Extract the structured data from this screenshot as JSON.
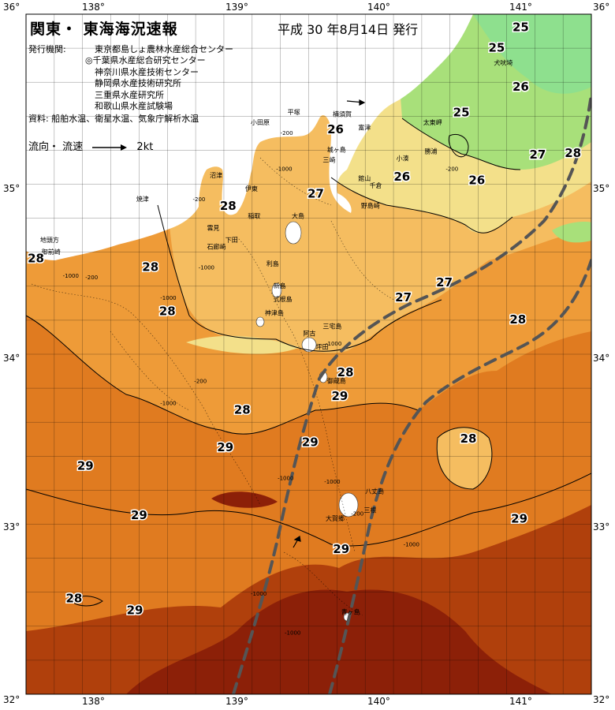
{
  "header": {
    "title": "関東・ 東海海況速報",
    "date": "平成 30 年8月14日 発行"
  },
  "issuers": {
    "label": "発行機関:",
    "list": [
      "東京都島しょ農林水産総合センター",
      "◎千葉県水産総合研究センター",
      "神奈川県水産技術センター",
      "静岡県水産技術研究所",
      "三重県水産研究所",
      "和歌山県水産試験場"
    ],
    "sources": "資料: 船舶水温、衛星水温、気象庁解析水温"
  },
  "legend": {
    "label": "流向・ 流速",
    "speed": "2kt"
  },
  "axes": {
    "lon_ticks": [
      "138°",
      "139°",
      "140°",
      "141°"
    ],
    "lat_ticks": [
      "35°",
      "34°",
      "33°"
    ],
    "corners": {
      "top_left": "36°",
      "top_right": "36°",
      "bottom_left": "32°",
      "bottom_right": "32°"
    }
  },
  "temperature_labels": [
    {
      "text": "25",
      "lon": 141.0,
      "lat": 35.9
    },
    {
      "text": "25",
      "lon": 140.83,
      "lat": 35.78
    },
    {
      "text": "26",
      "lon": 141.0,
      "lat": 35.55
    },
    {
      "text": "25",
      "lon": 140.58,
      "lat": 35.4
    },
    {
      "text": "26",
      "lon": 139.69,
      "lat": 35.3
    },
    {
      "text": "27",
      "lon": 141.12,
      "lat": 35.15
    },
    {
      "text": "28",
      "lon": 141.37,
      "lat": 35.16
    },
    {
      "text": "26",
      "lon": 140.16,
      "lat": 35.02
    },
    {
      "text": "26",
      "lon": 140.69,
      "lat": 35.0
    },
    {
      "text": "27",
      "lon": 139.55,
      "lat": 34.92
    },
    {
      "text": "28",
      "lon": 138.93,
      "lat": 34.85
    },
    {
      "text": "28",
      "lon": 137.57,
      "lat": 34.54
    },
    {
      "text": "28",
      "lon": 138.38,
      "lat": 34.49
    },
    {
      "text": "27",
      "lon": 140.46,
      "lat": 34.4
    },
    {
      "text": "27",
      "lon": 140.17,
      "lat": 34.31
    },
    {
      "text": "28",
      "lon": 138.5,
      "lat": 34.23
    },
    {
      "text": "28",
      "lon": 140.98,
      "lat": 34.18
    },
    {
      "text": "28",
      "lon": 139.76,
      "lat": 33.87
    },
    {
      "text": "29",
      "lon": 139.72,
      "lat": 33.73
    },
    {
      "text": "28",
      "lon": 139.03,
      "lat": 33.65
    },
    {
      "text": "28",
      "lon": 140.63,
      "lat": 33.48
    },
    {
      "text": "29",
      "lon": 139.51,
      "lat": 33.46
    },
    {
      "text": "29",
      "lon": 138.91,
      "lat": 33.43
    },
    {
      "text": "29",
      "lon": 137.92,
      "lat": 33.32
    },
    {
      "text": "29",
      "lon": 138.3,
      "lat": 33.03
    },
    {
      "text": "29",
      "lon": 140.99,
      "lat": 33.01
    },
    {
      "text": "29",
      "lon": 139.73,
      "lat": 32.83
    },
    {
      "text": "28",
      "lon": 137.84,
      "lat": 32.54
    },
    {
      "text": "29",
      "lon": 138.27,
      "lat": 32.47
    }
  ],
  "places": [
    {
      "text": "犬吠埼",
      "lon": 140.81,
      "lat": 35.7
    },
    {
      "text": "太東岬",
      "lon": 140.31,
      "lat": 35.35
    },
    {
      "text": "勝浦",
      "lon": 140.32,
      "lat": 35.18
    },
    {
      "text": "小湊",
      "lon": 140.12,
      "lat": 35.14
    },
    {
      "text": "富津",
      "lon": 139.85,
      "lat": 35.32
    },
    {
      "text": "横須賀",
      "lon": 139.67,
      "lat": 35.4
    },
    {
      "text": "平塚",
      "lon": 139.35,
      "lat": 35.41
    },
    {
      "text": "小田原",
      "lon": 139.09,
      "lat": 35.35
    },
    {
      "text": "館山",
      "lon": 139.85,
      "lat": 35.02
    },
    {
      "text": "千倉",
      "lon": 139.93,
      "lat": 34.98
    },
    {
      "text": "野島崎",
      "lon": 139.87,
      "lat": 34.86
    },
    {
      "text": "三崎",
      "lon": 139.6,
      "lat": 35.13
    },
    {
      "text": "城ヶ島",
      "lon": 139.63,
      "lat": 35.19
    },
    {
      "text": "沼津",
      "lon": 138.8,
      "lat": 35.04
    },
    {
      "text": "焼津",
      "lon": 138.28,
      "lat": 34.9
    },
    {
      "text": "伊東",
      "lon": 139.05,
      "lat": 34.96
    },
    {
      "text": "大島",
      "lon": 139.38,
      "lat": 34.8
    },
    {
      "text": "稲取",
      "lon": 139.07,
      "lat": 34.8
    },
    {
      "text": "下田",
      "lon": 138.91,
      "lat": 34.66
    },
    {
      "text": "雲見",
      "lon": 138.78,
      "lat": 34.73
    },
    {
      "text": "石廊崎",
      "lon": 138.78,
      "lat": 34.62
    },
    {
      "text": "地頭方",
      "lon": 137.6,
      "lat": 34.66
    },
    {
      "text": "御前崎",
      "lon": 137.61,
      "lat": 34.59
    },
    {
      "text": "利島",
      "lon": 139.2,
      "lat": 34.52
    },
    {
      "text": "新島",
      "lon": 139.25,
      "lat": 34.39
    },
    {
      "text": "式根島",
      "lon": 139.25,
      "lat": 34.31
    },
    {
      "text": "神津島",
      "lon": 139.19,
      "lat": 34.23
    },
    {
      "text": "三宅島",
      "lon": 139.6,
      "lat": 34.15
    },
    {
      "text": "阿古",
      "lon": 139.46,
      "lat": 34.11
    },
    {
      "text": "坪田",
      "lon": 139.55,
      "lat": 34.03
    },
    {
      "text": "御蔵島",
      "lon": 139.63,
      "lat": 33.83
    },
    {
      "text": "八丈島",
      "lon": 139.9,
      "lat": 33.18
    },
    {
      "text": "三根",
      "lon": 139.89,
      "lat": 33.07
    },
    {
      "text": "大賀郷",
      "lon": 139.62,
      "lat": 33.02
    },
    {
      "text": "青ヶ島",
      "lon": 139.73,
      "lat": 32.47
    }
  ],
  "contour_labels": [
    {
      "text": "-200",
      "lon": 139.3,
      "lat": 35.29
    },
    {
      "text": "-1000",
      "lon": 139.27,
      "lat": 35.08
    },
    {
      "text": "-200",
      "lon": 138.68,
      "lat": 34.9
    },
    {
      "text": "-200",
      "lon": 140.47,
      "lat": 35.08
    },
    {
      "text": "-1000",
      "lon": 137.76,
      "lat": 34.45
    },
    {
      "text": "-200",
      "lon": 137.92,
      "lat": 34.44
    },
    {
      "text": "-1000",
      "lon": 138.45,
      "lat": 34.32
    },
    {
      "text": "-1000",
      "lon": 138.72,
      "lat": 34.5
    },
    {
      "text": "-1000",
      "lon": 139.62,
      "lat": 34.05
    },
    {
      "text": "-1000",
      "lon": 138.45,
      "lat": 33.7
    },
    {
      "text": "-200",
      "lon": 138.69,
      "lat": 33.83
    },
    {
      "text": "-1000",
      "lon": 139.28,
      "lat": 33.26
    },
    {
      "text": "-1000",
      "lon": 139.61,
      "lat": 33.24
    },
    {
      "text": "-200",
      "lon": 139.8,
      "lat": 33.05
    },
    {
      "text": "-1000",
      "lon": 140.17,
      "lat": 32.87
    },
    {
      "text": "-1000",
      "lon": 139.09,
      "lat": 32.58
    },
    {
      "text": "-1000",
      "lon": 139.33,
      "lat": 32.35
    }
  ],
  "colors": {
    "ocean_29": "#e07b20",
    "ocean_28": "#ee9b38",
    "ocean_27": "#f5bd60",
    "ocean_26": "#f3e08a",
    "ocean_25": "#a8e07a",
    "ocean_24": "#8ee08e",
    "ocean_30": "#b0400c",
    "ocean_31": "#8c2008",
    "land": "#ffffff",
    "kuroshio": "#555555"
  }
}
